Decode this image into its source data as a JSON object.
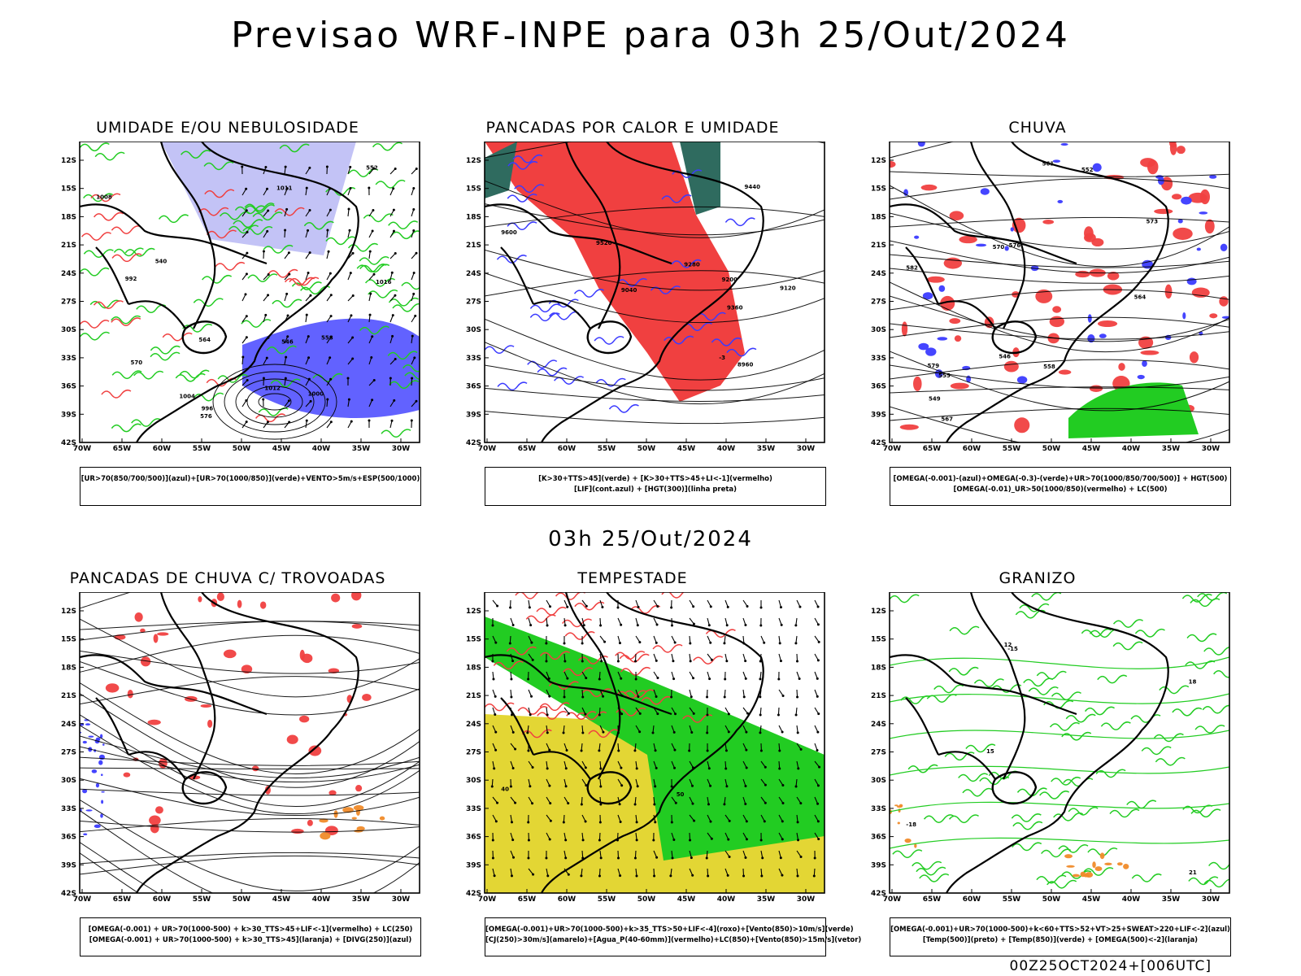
{
  "header": {
    "title": "Previsao WRF-INPE  para 03h 25/Out/2024",
    "mid_date": "03h 25/Out/2024",
    "footer": "00Z25OCT2024+[006UTC]"
  },
  "axes": {
    "lat_labels": [
      "12S",
      "15S",
      "18S",
      "21S",
      "24S",
      "27S",
      "30S",
      "33S",
      "36S",
      "39S",
      "42S"
    ],
    "lon_labels": [
      "70W",
      "65W",
      "60W",
      "55W",
      "50W",
      "45W",
      "40W",
      "35W",
      "30W"
    ]
  },
  "colors": {
    "blue": "#3b3bff",
    "light_blue": "#b9b9f5",
    "green": "#22cc22",
    "red": "#f04040",
    "dark_teal": "#2f6b5f",
    "yellow": "#e3d634",
    "orange": "#f08b2a",
    "black": "#000000"
  },
  "panels": [
    {
      "id": "umidade",
      "title": "UMIDADE E/OU NEBULOSIDADE",
      "legend": [
        "[UR>70(850/700/500)](azul)+[UR>70(1000/850)](verde)+VENTO>5m/s+ESP(500/1000)"
      ],
      "labels": [
        "1008",
        "1012",
        "1004",
        "1000",
        "1016",
        "996",
        "992",
        "576",
        "570",
        "564",
        "558",
        "552",
        "546",
        "540",
        "1011"
      ]
    },
    {
      "id": "pancadas-calor",
      "title": "PANCADAS POR CALOR E UMIDADE",
      "legend": [
        "[K>30+TTS>45](verde) + [K>30+TTS>45+LI<-1](vermelho)",
        "[LIF](cont.azul) + [HGT(300)](linha preta)"
      ],
      "labels": [
        "9600",
        "9520",
        "9440",
        "9360",
        "9280",
        "9200",
        "9120",
        "9040",
        "8960",
        "-3"
      ]
    },
    {
      "id": "chuva",
      "title": "CHUVA",
      "legend": [
        "[OMEGA(-0.001)-(azul)+OMEGA(-0.3)-(verde)+UR>70(1000/850/700/500)] + HGT(500)",
        "[OMEGA(-0.01)_UR>50(1000/850)(vermelho) + LC(500)"
      ],
      "labels": [
        "582",
        "579",
        "576",
        "573",
        "570",
        "567",
        "564",
        "561",
        "558",
        "555",
        "552",
        "549",
        "546"
      ]
    },
    {
      "id": "trovoadas",
      "title": "PANCADAS DE CHUVA C/ TROVOADAS",
      "legend": [
        "[OMEGA(-0.001) + UR>70(1000-500) + k>30_TTS>45+LIF<-1](vermelho) + LC(250)",
        "[OMEGA(-0.001) + UR>70(1000-500) + k>30_TTS>45](laranja) + [DIVG(250)](azul)"
      ],
      "labels": []
    },
    {
      "id": "tempestade",
      "title": "TEMPESTADE",
      "legend": [
        "[OMEGA(-0.001)+UR>70(1000-500)+k>35_TTS>50+LIF<-4](roxo)+[Vento(850)>10m/s](verde)",
        "[CJ(250)>30m/s](amarelo)+[Agua_P(40-60mm)](vermelho)+LC(850)+[Vento(850)>15m/s](vetor)"
      ],
      "labels": [
        "40",
        "50"
      ]
    },
    {
      "id": "granizo",
      "title": "GRANIZO",
      "legend": [
        "[OMEGA(-0.001)+UR>70(1000-500)+k<60+TTS>52+VT>25+SWEAT>220+LIF<-2](azul)",
        "[Temp(500)](preto) + [Temp(850)](verde) + [OMEGA(500)<-2](laranja)"
      ],
      "labels": [
        "-18",
        "-15",
        "21",
        "18",
        "12",
        "15"
      ]
    }
  ]
}
